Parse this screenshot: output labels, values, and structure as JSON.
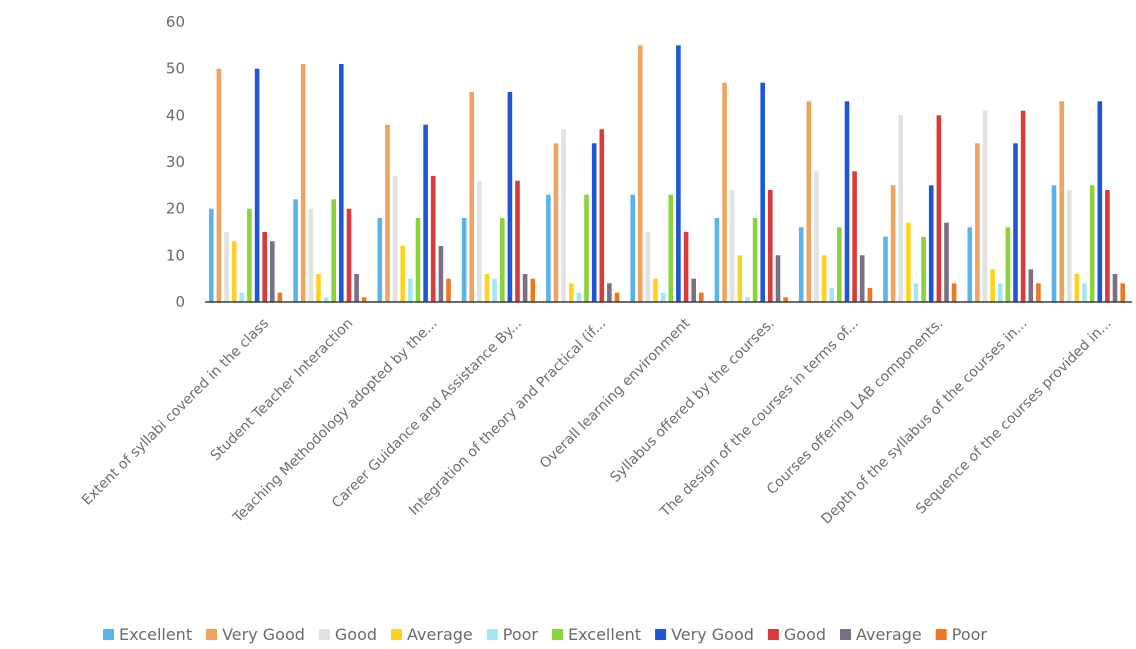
{
  "chart_data": {
    "type": "bar",
    "title": "",
    "xlabel": "",
    "ylabel": "",
    "ylim": [
      0,
      60
    ],
    "yticks": [
      0,
      10,
      20,
      30,
      40,
      50,
      60
    ],
    "grid": false,
    "legend_position": "bottom",
    "categories": [
      "Extent of syllabi covered in the class",
      "Student Teacher Interaction",
      "Teaching Methodology adopted by the...",
      "Career Guidance and Assistance By...",
      "Integration of theory and Practical (if...",
      "Overall learning environment",
      "Syllabus offered by the courses.",
      "The design of the courses in terms of...",
      "Courses offering LAB components.",
      "Depth of the syllabus of the courses in...",
      "Sequence of the courses provided in..."
    ],
    "series": [
      {
        "name": "Excellent",
        "color": "#5ab4e8",
        "values": [
          20,
          22,
          18,
          18,
          23,
          23,
          18,
          16,
          14,
          16,
          25
        ]
      },
      {
        "name": "Very Good",
        "color": "#f0a35e",
        "values": [
          50,
          51,
          38,
          45,
          34,
          55,
          47,
          43,
          25,
          34,
          43
        ]
      },
      {
        "name": "Good",
        "color": "#e2e2e2",
        "values": [
          15,
          20,
          27,
          26,
          37,
          15,
          24,
          28,
          40,
          41,
          24
        ]
      },
      {
        "name": "Average",
        "color": "#ffd21f",
        "values": [
          13,
          6,
          12,
          6,
          4,
          5,
          10,
          10,
          17,
          7,
          6
        ]
      },
      {
        "name": "Poor",
        "color": "#a6e6f2",
        "values": [
          2,
          1,
          5,
          5,
          2,
          2,
          1,
          3,
          4,
          4,
          4
        ]
      },
      {
        "name": "Excellent",
        "color": "#8ad43a",
        "values": [
          20,
          22,
          18,
          18,
          23,
          23,
          18,
          16,
          14,
          16,
          25
        ]
      },
      {
        "name": "Very Good",
        "color": "#1f56d8",
        "values": [
          50,
          51,
          38,
          45,
          34,
          55,
          47,
          43,
          25,
          34,
          43
        ]
      },
      {
        "name": "Good",
        "color": "#d93b3b",
        "values": [
          15,
          20,
          27,
          26,
          37,
          15,
          24,
          28,
          40,
          41,
          24
        ]
      },
      {
        "name": "Average",
        "color": "#7b6f83",
        "values": [
          13,
          6,
          12,
          6,
          4,
          5,
          10,
          10,
          17,
          7,
          6
        ]
      },
      {
        "name": "Poor",
        "color": "#e97a23",
        "values": [
          2,
          1,
          5,
          5,
          2,
          2,
          1,
          3,
          4,
          4,
          4
        ]
      }
    ]
  }
}
